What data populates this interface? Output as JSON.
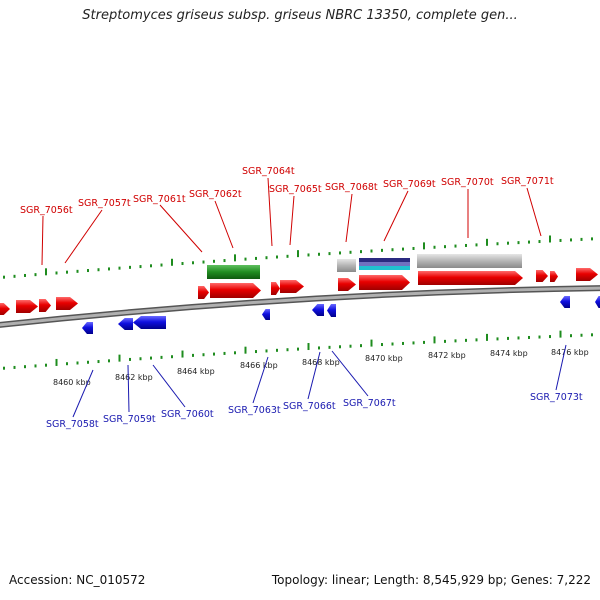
{
  "title": "Streptomyces griseus subsp. griseus NBRC 13350, complete gen...",
  "footer": {
    "accession": "Accession: NC_010572",
    "summary": "Topology: linear; Length: 8,545,929 bp; Genes: 7,222"
  },
  "colors": {
    "forward_gene": "#e80000",
    "reverse_gene": "#1010e0",
    "rna_gene": "#208c20",
    "misc_feature": "#b4b4b4",
    "feature_band": "#2a2a80",
    "feature_band_2": "#20c0d0",
    "tick": "#1e8c1e",
    "backbone": "#888888",
    "label_top": "#d00000",
    "label_bottom": "#1a1ab0"
  },
  "scale_labels": [
    "8460 kbp",
    "8462 kbp",
    "8464 kbp",
    "8466 kbp",
    "8468 kbp",
    "8470 kbp",
    "8472 kbp",
    "8474 kbp",
    "8476 kbp"
  ],
  "gene_labels_top": [
    "SGR_7056t",
    "SGR_7057t",
    "SGR_7061t",
    "SGR_7062t",
    "SGR_7064t",
    "SGR_7065t",
    "SGR_7068t",
    "SGR_7069t",
    "SGR_7070t",
    "SGR_7071t"
  ],
  "gene_labels_bottom": [
    "SGR_7058t",
    "SGR_7059t",
    "SGR_7060t",
    "SGR_7063t",
    "SGR_7066t",
    "SGR_7067t",
    "SGR_7073t"
  ]
}
